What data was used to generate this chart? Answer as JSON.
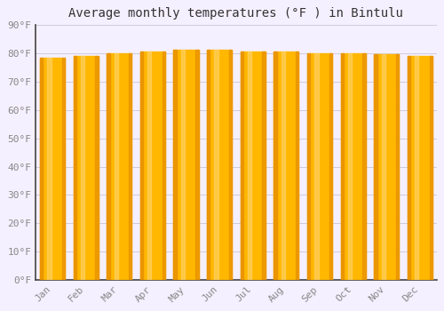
{
  "title": "Average monthly temperatures (°F ) in Bintulu",
  "months": [
    "Jan",
    "Feb",
    "Mar",
    "Apr",
    "May",
    "Jun",
    "Jul",
    "Aug",
    "Sep",
    "Oct",
    "Nov",
    "Dec"
  ],
  "values": [
    78.3,
    79.0,
    80.0,
    80.5,
    81.0,
    81.0,
    80.5,
    80.5,
    80.0,
    80.0,
    79.5,
    79.0
  ],
  "ylim": [
    0,
    90
  ],
  "yticks": [
    0,
    10,
    20,
    30,
    40,
    50,
    60,
    70,
    80,
    90
  ],
  "ytick_labels": [
    "0°F",
    "10°F",
    "20°F",
    "30°F",
    "40°F",
    "50°F",
    "60°F",
    "70°F",
    "80°F",
    "90°F"
  ],
  "bar_color_center": "#FFB700",
  "bar_color_edge": "#E89000",
  "bar_color_highlight": "#FFDA80",
  "background_color": "#F5F0FF",
  "plot_bg_color": "#F5F0FF",
  "grid_color": "#CCCCDD",
  "axis_color": "#444444",
  "label_color": "#888888",
  "title_color": "#333333",
  "title_fontsize": 10,
  "tick_fontsize": 8,
  "figsize": [
    5.0,
    3.5
  ],
  "dpi": 100,
  "bar_width": 0.75
}
